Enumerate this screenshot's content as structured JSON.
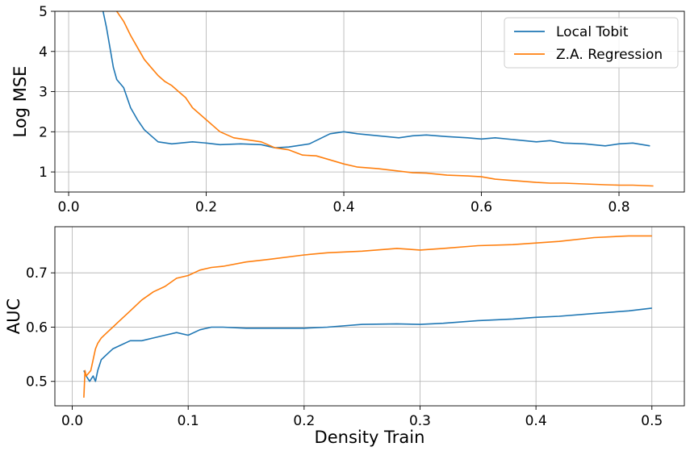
{
  "chart_data": [
    {
      "type": "line",
      "title": "",
      "xlabel": "",
      "ylabel": "Log MSE",
      "xlim": [
        -0.02,
        0.895
      ],
      "ylim": [
        0.5,
        5.0
      ],
      "xticks": [
        0.0,
        0.2,
        0.4,
        0.6,
        0.8
      ],
      "xtick_labels": [
        "0.0",
        "0.2",
        "0.4",
        "0.6",
        "0.8"
      ],
      "yticks": [
        1,
        2,
        3,
        4,
        5
      ],
      "ytick_labels": [
        "1",
        "2",
        "3",
        "4",
        "5"
      ],
      "grid": true,
      "legend_position": "top-right",
      "series": [
        {
          "name": "Local Tobit",
          "color": "#1f77b4",
          "x": [
            0.05,
            0.055,
            0.06,
            0.065,
            0.07,
            0.08,
            0.09,
            0.1,
            0.11,
            0.12,
            0.13,
            0.15,
            0.18,
            0.2,
            0.22,
            0.25,
            0.28,
            0.3,
            0.32,
            0.35,
            0.38,
            0.4,
            0.42,
            0.45,
            0.48,
            0.5,
            0.52,
            0.55,
            0.58,
            0.6,
            0.62,
            0.65,
            0.68,
            0.7,
            0.72,
            0.75,
            0.78,
            0.8,
            0.82,
            0.845
          ],
          "y": [
            5.0,
            4.6,
            4.1,
            3.6,
            3.3,
            3.1,
            2.6,
            2.3,
            2.05,
            1.9,
            1.75,
            1.7,
            1.75,
            1.72,
            1.68,
            1.7,
            1.68,
            1.6,
            1.62,
            1.7,
            1.95,
            2.0,
            1.95,
            1.9,
            1.85,
            1.9,
            1.92,
            1.88,
            1.85,
            1.82,
            1.85,
            1.8,
            1.75,
            1.78,
            1.72,
            1.7,
            1.65,
            1.7,
            1.72,
            1.65
          ]
        },
        {
          "name": "Z.A. Regression",
          "color": "#ff7f0e",
          "x": [
            0.07,
            0.08,
            0.09,
            0.1,
            0.11,
            0.12,
            0.13,
            0.14,
            0.15,
            0.16,
            0.17,
            0.18,
            0.2,
            0.22,
            0.24,
            0.26,
            0.28,
            0.3,
            0.32,
            0.34,
            0.36,
            0.38,
            0.4,
            0.42,
            0.45,
            0.48,
            0.5,
            0.52,
            0.55,
            0.58,
            0.6,
            0.62,
            0.65,
            0.68,
            0.7,
            0.72,
            0.75,
            0.78,
            0.8,
            0.82,
            0.85
          ],
          "y": [
            5.0,
            4.75,
            4.4,
            4.1,
            3.8,
            3.6,
            3.4,
            3.25,
            3.15,
            3.0,
            2.85,
            2.6,
            2.3,
            2.0,
            1.85,
            1.8,
            1.75,
            1.6,
            1.55,
            1.42,
            1.4,
            1.3,
            1.2,
            1.12,
            1.08,
            1.02,
            0.98,
            0.97,
            0.92,
            0.9,
            0.88,
            0.82,
            0.78,
            0.74,
            0.72,
            0.72,
            0.7,
            0.68,
            0.67,
            0.67,
            0.65
          ]
        }
      ]
    },
    {
      "type": "line",
      "title": "",
      "xlabel": "Density Train",
      "ylabel": "AUC",
      "xlim": [
        -0.015,
        0.528
      ],
      "ylim": [
        0.455,
        0.785
      ],
      "xticks": [
        0.0,
        0.1,
        0.2,
        0.3,
        0.4,
        0.5
      ],
      "xtick_labels": [
        "0.0",
        "0.1",
        "0.2",
        "0.3",
        "0.4",
        "0.5"
      ],
      "yticks": [
        0.5,
        0.6,
        0.7
      ],
      "ytick_labels": [
        "0.5",
        "0.6",
        "0.7"
      ],
      "grid": true,
      "series": [
        {
          "name": "Local Tobit",
          "color": "#1f77b4",
          "x": [
            0.01,
            0.012,
            0.015,
            0.018,
            0.02,
            0.022,
            0.025,
            0.03,
            0.035,
            0.04,
            0.05,
            0.06,
            0.07,
            0.08,
            0.09,
            0.1,
            0.11,
            0.12,
            0.13,
            0.15,
            0.18,
            0.2,
            0.22,
            0.25,
            0.28,
            0.3,
            0.32,
            0.35,
            0.38,
            0.4,
            0.42,
            0.45,
            0.48,
            0.5
          ],
          "y": [
            0.52,
            0.51,
            0.5,
            0.51,
            0.5,
            0.52,
            0.54,
            0.55,
            0.56,
            0.565,
            0.575,
            0.575,
            0.58,
            0.585,
            0.59,
            0.585,
            0.595,
            0.6,
            0.6,
            0.598,
            0.598,
            0.598,
            0.6,
            0.605,
            0.606,
            0.605,
            0.607,
            0.612,
            0.615,
            0.618,
            0.62,
            0.625,
            0.63,
            0.635
          ]
        },
        {
          "name": "Z.A. Regression",
          "color": "#ff7f0e",
          "x": [
            0.01,
            0.011,
            0.012,
            0.014,
            0.016,
            0.018,
            0.02,
            0.022,
            0.025,
            0.03,
            0.035,
            0.04,
            0.05,
            0.06,
            0.07,
            0.08,
            0.09,
            0.1,
            0.11,
            0.12,
            0.13,
            0.15,
            0.17,
            0.2,
            0.22,
            0.25,
            0.28,
            0.3,
            0.32,
            0.35,
            0.38,
            0.4,
            0.42,
            0.45,
            0.48,
            0.5
          ],
          "y": [
            0.47,
            0.52,
            0.51,
            0.515,
            0.52,
            0.54,
            0.56,
            0.57,
            0.58,
            0.59,
            0.6,
            0.61,
            0.63,
            0.65,
            0.665,
            0.675,
            0.69,
            0.695,
            0.705,
            0.71,
            0.712,
            0.72,
            0.725,
            0.733,
            0.737,
            0.74,
            0.745,
            0.742,
            0.745,
            0.75,
            0.752,
            0.755,
            0.758,
            0.765,
            0.768,
            0.768
          ]
        }
      ]
    }
  ]
}
